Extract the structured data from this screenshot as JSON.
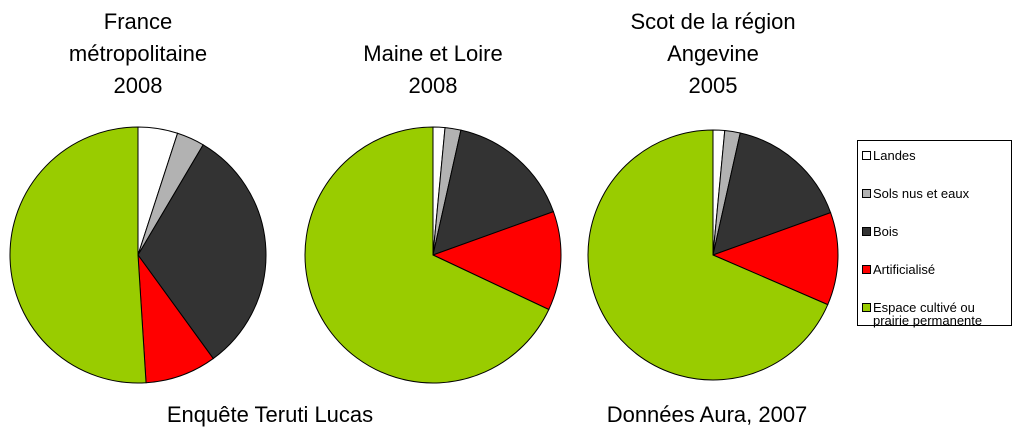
{
  "chart_data": [
    {
      "type": "pie",
      "title": "France\nmétropolitaine\n2008",
      "categories": [
        "Landes",
        "Sols nus et eaux",
        "Bois",
        "Artificialisé",
        "Espace cultivé ou\nprairie permanente"
      ],
      "values": [
        5,
        3.5,
        31.5,
        9,
        51
      ],
      "colors": [
        "#ffffff",
        "#b2b2b2",
        "#333333",
        "#ff0000",
        "#99cc00"
      ]
    },
    {
      "type": "pie",
      "title": "Maine et Loire\n2008",
      "categories": [
        "Landes",
        "Sols nus et eaux",
        "Bois",
        "Artificialisé",
        "Espace cultivé ou\nprairie permanente"
      ],
      "values": [
        1.5,
        2,
        16,
        12.5,
        68
      ],
      "colors": [
        "#ffffff",
        "#b2b2b2",
        "#333333",
        "#ff0000",
        "#99cc00"
      ]
    },
    {
      "type": "pie",
      "title": "Scot de la région\nAngevine\n2005",
      "categories": [
        "Landes",
        "Sols nus et eaux",
        "Bois",
        "Artificialisé",
        "Espace cultivé ou\nprairie permanente"
      ],
      "values": [
        1.5,
        2,
        16,
        12,
        68.5
      ],
      "colors": [
        "#ffffff",
        "#b2b2b2",
        "#333333",
        "#ff0000",
        "#99cc00"
      ]
    }
  ],
  "sources": [
    "Enquête Teruti Lucas",
    "Données Aura, 2007"
  ]
}
